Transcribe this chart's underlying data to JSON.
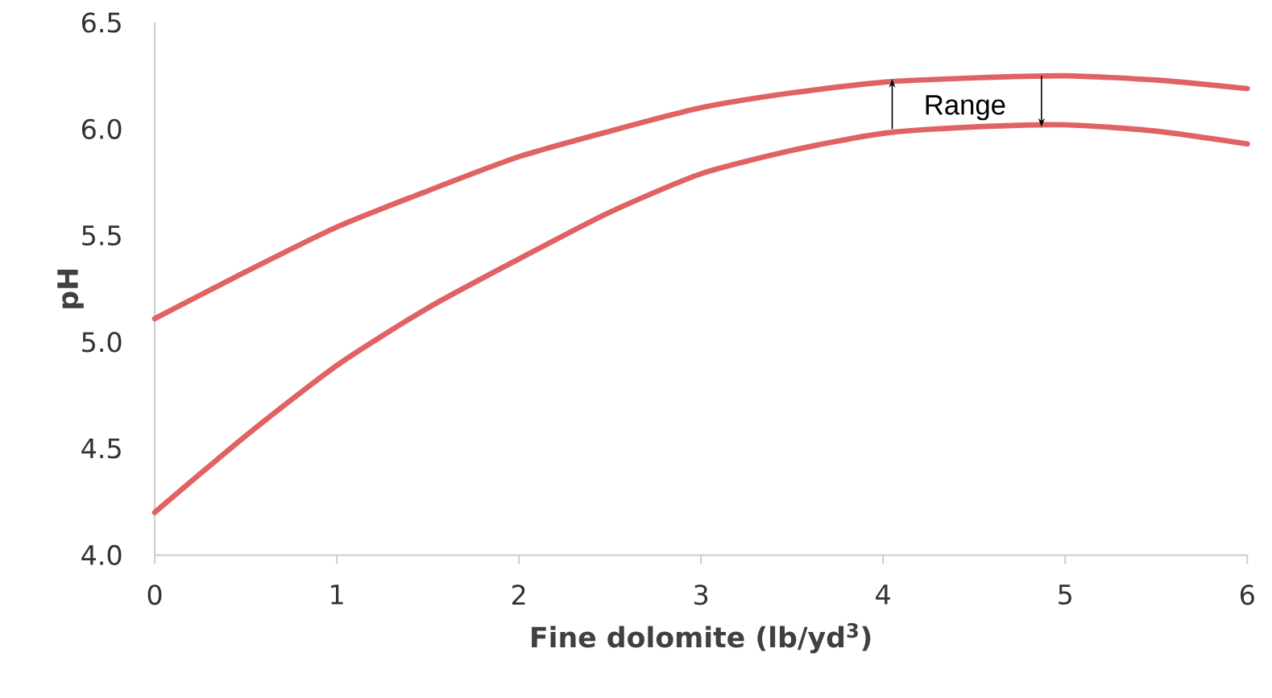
{
  "chart_data": {
    "type": "line",
    "xlabel": "Fine dolomite (lb/yd$^{3}$)",
    "ylabel": "pH",
    "x": [
      0,
      0.5,
      1,
      1.5,
      2,
      2.5,
      3,
      3.5,
      4,
      4.5,
      5,
      5.5,
      6
    ],
    "series": [
      {
        "color": "#e06262",
        "values": [
          5.11,
          5.33,
          5.54,
          5.71,
          5.87,
          5.99,
          6.1,
          6.17,
          6.22,
          6.24,
          6.25,
          6.23,
          6.19
        ]
      },
      {
        "color": "#e06262",
        "values": [
          4.2,
          4.56,
          4.89,
          5.16,
          5.39,
          5.61,
          5.79,
          5.9,
          5.98,
          6.01,
          6.02,
          5.99,
          5.93
        ]
      }
    ],
    "annotations": [
      "Range"
    ],
    "xlim": [
      0,
      6
    ],
    "ylim": [
      4.0,
      6.5
    ],
    "xticks": [
      0,
      1,
      2,
      3,
      4,
      5,
      6
    ],
    "yticks": [
      {
        "value": 4,
        "label": "4.0"
      },
      4.5,
      {
        "value": 5,
        "label": "5.0"
      },
      5.5,
      {
        "value": 6,
        "label": "6.0"
      },
      6.5
    ],
    "grid": false,
    "marker": "none",
    "line_style": "solid"
  }
}
